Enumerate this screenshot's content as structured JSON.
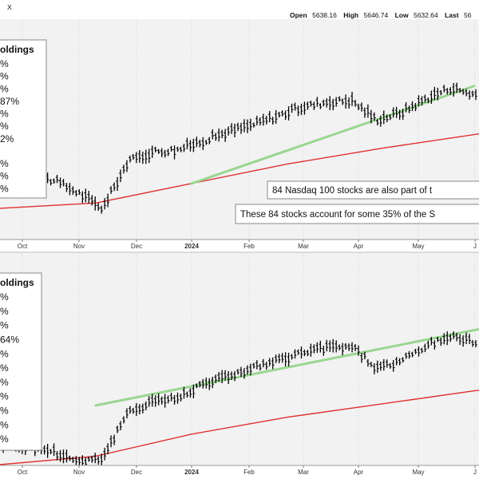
{
  "header": {
    "corner_mark": "X",
    "open_label": "Open",
    "open_value": "5638.16",
    "high_label": "High",
    "high_value": "5646.74",
    "low_label": "Low",
    "low_value": "5632.64",
    "last_label": "Last",
    "last_value": "56"
  },
  "colors": {
    "panel_background": "#f2f2f2",
    "gridline": "#cfcfcf",
    "price_bar": "#000000",
    "trend_line": "#9ad691",
    "moving_average": "#e03030",
    "separator": "#bdbdbd"
  },
  "x_axis": {
    "months": [
      {
        "label": "Oct",
        "bold": false
      },
      {
        "label": "Nov",
        "bold": false
      },
      {
        "label": "Dec",
        "bold": false
      },
      {
        "label": "2024",
        "bold": true
      },
      {
        "label": "Feb",
        "bold": false
      },
      {
        "label": "Mar",
        "bold": false
      },
      {
        "label": "Apr",
        "bold": false
      },
      {
        "label": "May",
        "bold": false
      },
      {
        "label": "J",
        "bold": false
      }
    ]
  },
  "chart_data": [
    {
      "type": "line",
      "legend": {
        "title": "oldings",
        "items": [
          "%",
          "%",
          "%",
          "87%",
          "%",
          "%",
          "2%",
          "",
          "%",
          "%",
          "%"
        ]
      },
      "annotations": [
        "84 Nasdaq 100 stocks are also part of t",
        "These 84 stocks account for some 35% of the S"
      ],
      "x": [
        "Oct",
        "Oct",
        "Oct",
        "Nov",
        "Nov",
        "Nov",
        "Dec",
        "Dec",
        "2024",
        "2024",
        "Feb",
        "Feb",
        "Mar",
        "Mar",
        "Apr",
        "Apr",
        "May",
        "May",
        "May",
        "Jun"
      ],
      "series": [
        {
          "values": [
            0.34,
            0.32,
            0.3,
            0.23,
            0.14,
            0.4,
            0.46,
            0.47,
            0.52,
            0.57,
            0.61,
            0.66,
            0.71,
            0.74,
            0.75,
            0.64,
            0.68,
            0.76,
            0.82,
            0.78
          ]
        }
      ],
      "trend_line": [
        [
          0.4,
          0.28
        ],
        [
          0.99,
          0.83
        ]
      ],
      "moving_average": [
        [
          0.0,
          0.14
        ],
        [
          0.2,
          0.17
        ],
        [
          0.4,
          0.28
        ],
        [
          0.6,
          0.39
        ],
        [
          0.8,
          0.48
        ],
        [
          1.0,
          0.56
        ]
      ]
    },
    {
      "type": "line",
      "legend": {
        "title": "oldings",
        "items": [
          "%",
          "%",
          "%",
          "64%",
          "%",
          "%",
          "%",
          "%",
          "%",
          "%",
          "%"
        ]
      },
      "annotations": [],
      "x": [
        "Oct",
        "Oct",
        "Oct",
        "Nov",
        "Nov",
        "Nov",
        "Dec",
        "Dec",
        "2024",
        "2024",
        "Feb",
        "Feb",
        "Mar",
        "Mar",
        "Apr",
        "Apr",
        "May",
        "May",
        "May",
        "Jun"
      ],
      "series": [
        {
          "values": [
            0.12,
            0.1,
            0.08,
            0.02,
            0.04,
            0.3,
            0.38,
            0.39,
            0.48,
            0.52,
            0.57,
            0.61,
            0.66,
            0.69,
            0.7,
            0.57,
            0.61,
            0.7,
            0.76,
            0.72
          ]
        }
      ],
      "trend_line": [
        [
          0.2,
          0.35
        ],
        [
          1.0,
          0.8
        ]
      ],
      "moving_average": [
        [
          0.0,
          0.0
        ],
        [
          0.2,
          0.05
        ],
        [
          0.4,
          0.18
        ],
        [
          0.6,
          0.28
        ],
        [
          0.8,
          0.36
        ],
        [
          1.0,
          0.44
        ]
      ]
    }
  ]
}
